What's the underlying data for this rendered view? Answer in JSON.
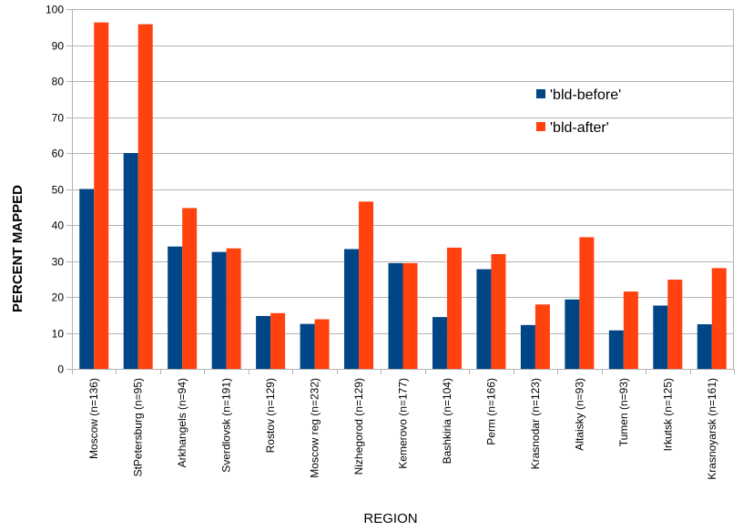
{
  "chart_data": {
    "type": "bar",
    "title": "",
    "xlabel": "REGION",
    "ylabel": "PERCENT MAPPED",
    "ylim": [
      0,
      100
    ],
    "yticks": [
      0,
      10,
      20,
      30,
      40,
      50,
      60,
      70,
      80,
      90,
      100
    ],
    "grid": true,
    "legend_position": "right",
    "categories": [
      "Moscow (n=136)",
      "StPetersburg (n=95)",
      "Arkhangels (n=94)",
      "Sverdlovsk (n=191)",
      "Rostov (n=129)",
      "Moscow reg (n=232)",
      "Nizhegorod (n=129)",
      "Kemerovo (n=177)",
      "Bashkiria (n=104)",
      "Perm (n=166)",
      "Krasnodar (n=123)",
      "Altaisky (n=93)",
      "Tumen (n=93)",
      "Irkutsk (n=125)",
      "Krasnoyarsk (n=161)"
    ],
    "series": [
      {
        "name": "'bld-before'",
        "color": "#004586",
        "values": [
          50,
          60,
          34,
          32.5,
          14.7,
          12.5,
          33.3,
          29.4,
          14.4,
          27.7,
          12.2,
          19.3,
          10.7,
          17.6,
          12.4
        ]
      },
      {
        "name": "'bld-after'",
        "color": "#ff420e",
        "values": [
          96.3,
          95.8,
          44.7,
          33.5,
          15.5,
          13.8,
          46.5,
          29.4,
          33.7,
          31.9,
          17.9,
          36.6,
          21.5,
          24.8,
          28
        ]
      }
    ]
  }
}
